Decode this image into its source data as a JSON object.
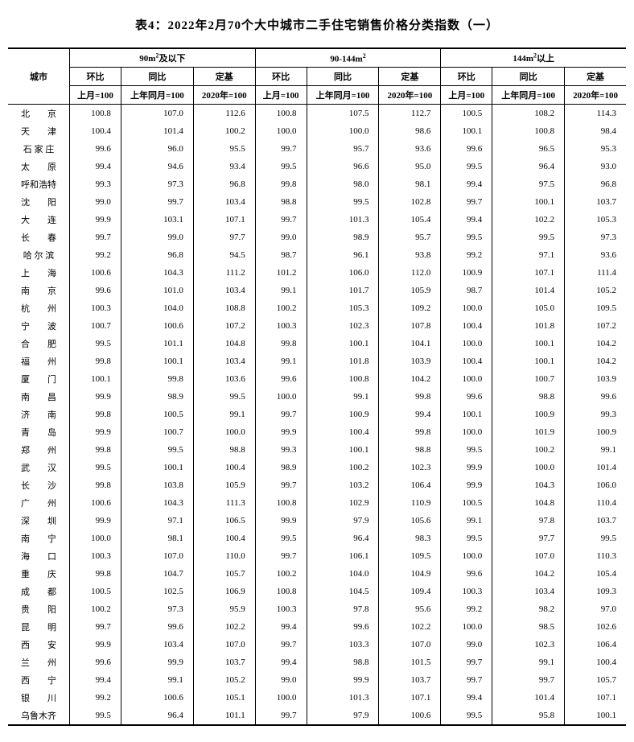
{
  "title": "表4：2022年2月70个大中城市二手住宅销售价格分类指数（一）",
  "headers": {
    "city": "城市",
    "group1": "90m²及以下",
    "group2": "90-144m²",
    "group3": "144m²以上",
    "mom": "环比",
    "yoy": "同比",
    "base": "定基",
    "sub_mom": "上月=100",
    "sub_yoy": "上年同月=100",
    "sub_base": "2020年=100"
  },
  "rows": [
    {
      "city": "北　　京",
      "v": [
        "100.8",
        "107.0",
        "112.6",
        "100.8",
        "107.5",
        "112.7",
        "100.5",
        "108.2",
        "114.3"
      ]
    },
    {
      "city": "天　　津",
      "v": [
        "100.4",
        "101.4",
        "100.2",
        "100.0",
        "100.0",
        "98.6",
        "100.1",
        "100.8",
        "98.4"
      ]
    },
    {
      "city": "石 家 庄",
      "v": [
        "99.6",
        "96.0",
        "95.5",
        "99.7",
        "95.7",
        "93.6",
        "99.6",
        "96.5",
        "95.3"
      ]
    },
    {
      "city": "太　　原",
      "v": [
        "99.4",
        "94.6",
        "93.4",
        "99.5",
        "96.6",
        "95.0",
        "99.5",
        "96.4",
        "93.0"
      ]
    },
    {
      "city": "呼和浩特",
      "v": [
        "99.3",
        "97.3",
        "96.8",
        "99.8",
        "98.0",
        "98.1",
        "99.4",
        "97.5",
        "96.8"
      ]
    },
    {
      "city": "沈　　阳",
      "v": [
        "99.0",
        "99.7",
        "103.4",
        "98.8",
        "99.5",
        "102.8",
        "99.7",
        "100.1",
        "103.7"
      ]
    },
    {
      "city": "大　　连",
      "v": [
        "99.9",
        "103.1",
        "107.1",
        "99.7",
        "101.3",
        "105.4",
        "99.4",
        "102.2",
        "105.3"
      ]
    },
    {
      "city": "长　　春",
      "v": [
        "99.7",
        "99.0",
        "97.7",
        "99.0",
        "98.9",
        "95.7",
        "99.5",
        "99.5",
        "97.3"
      ]
    },
    {
      "city": "哈 尔 滨",
      "v": [
        "99.2",
        "96.8",
        "94.5",
        "98.7",
        "96.1",
        "93.8",
        "99.2",
        "97.1",
        "93.6"
      ]
    },
    {
      "city": "上　　海",
      "v": [
        "100.6",
        "104.3",
        "111.2",
        "101.2",
        "106.0",
        "112.0",
        "100.9",
        "107.1",
        "111.4"
      ]
    },
    {
      "city": "南　　京",
      "v": [
        "99.6",
        "101.0",
        "103.4",
        "99.1",
        "101.7",
        "105.9",
        "98.7",
        "101.4",
        "105.2"
      ]
    },
    {
      "city": "杭　　州",
      "v": [
        "100.3",
        "104.0",
        "108.8",
        "100.2",
        "105.3",
        "109.2",
        "100.0",
        "105.0",
        "109.5"
      ]
    },
    {
      "city": "宁　　波",
      "v": [
        "100.7",
        "100.6",
        "107.2",
        "100.3",
        "102.3",
        "107.8",
        "100.4",
        "101.8",
        "107.2"
      ]
    },
    {
      "city": "合　　肥",
      "v": [
        "99.5",
        "101.1",
        "104.8",
        "99.8",
        "100.1",
        "104.1",
        "100.0",
        "100.1",
        "104.2"
      ]
    },
    {
      "city": "福　　州",
      "v": [
        "99.8",
        "100.1",
        "103.4",
        "99.1",
        "101.8",
        "103.9",
        "100.4",
        "100.1",
        "104.2"
      ]
    },
    {
      "city": "厦　　门",
      "v": [
        "100.1",
        "99.8",
        "103.6",
        "99.6",
        "100.8",
        "104.2",
        "100.0",
        "100.7",
        "103.9"
      ]
    },
    {
      "city": "南　　昌",
      "v": [
        "99.9",
        "98.9",
        "99.5",
        "100.0",
        "99.1",
        "99.8",
        "99.6",
        "98.8",
        "99.6"
      ]
    },
    {
      "city": "济　　南",
      "v": [
        "99.8",
        "100.5",
        "99.1",
        "99.7",
        "100.9",
        "99.4",
        "100.1",
        "100.9",
        "99.3"
      ]
    },
    {
      "city": "青　　岛",
      "v": [
        "99.9",
        "100.7",
        "100.0",
        "99.9",
        "100.4",
        "99.8",
        "100.0",
        "101.9",
        "100.9"
      ]
    },
    {
      "city": "郑　　州",
      "v": [
        "99.8",
        "99.5",
        "98.8",
        "99.3",
        "100.1",
        "98.8",
        "99.5",
        "100.2",
        "99.1"
      ]
    },
    {
      "city": "武　　汉",
      "v": [
        "99.5",
        "100.1",
        "100.4",
        "98.9",
        "100.2",
        "102.3",
        "99.9",
        "100.0",
        "101.4"
      ]
    },
    {
      "city": "长　　沙",
      "v": [
        "99.8",
        "103.8",
        "105.9",
        "99.7",
        "103.2",
        "106.4",
        "99.9",
        "104.3",
        "106.0"
      ]
    },
    {
      "city": "广　　州",
      "v": [
        "100.6",
        "104.3",
        "111.3",
        "100.8",
        "102.9",
        "110.9",
        "100.5",
        "104.8",
        "110.4"
      ]
    },
    {
      "city": "深　　圳",
      "v": [
        "99.9",
        "97.1",
        "106.5",
        "99.9",
        "97.9",
        "105.6",
        "99.1",
        "97.8",
        "103.7"
      ]
    },
    {
      "city": "南　　宁",
      "v": [
        "100.0",
        "98.1",
        "100.4",
        "99.5",
        "96.4",
        "98.3",
        "99.5",
        "97.7",
        "99.5"
      ]
    },
    {
      "city": "海　　口",
      "v": [
        "100.3",
        "107.0",
        "110.0",
        "99.7",
        "106.1",
        "109.5",
        "100.0",
        "107.0",
        "110.3"
      ]
    },
    {
      "city": "重　　庆",
      "v": [
        "99.8",
        "104.7",
        "105.7",
        "100.2",
        "104.0",
        "104.9",
        "99.6",
        "104.2",
        "105.4"
      ]
    },
    {
      "city": "成　　都",
      "v": [
        "100.5",
        "102.5",
        "106.9",
        "100.8",
        "104.5",
        "109.4",
        "100.3",
        "103.4",
        "109.3"
      ]
    },
    {
      "city": "贵　　阳",
      "v": [
        "100.2",
        "97.3",
        "95.9",
        "100.3",
        "97.8",
        "95.6",
        "99.2",
        "98.2",
        "97.0"
      ]
    },
    {
      "city": "昆　　明",
      "v": [
        "99.7",
        "99.6",
        "102.2",
        "99.4",
        "99.6",
        "102.2",
        "100.0",
        "98.5",
        "102.6"
      ]
    },
    {
      "city": "西　　安",
      "v": [
        "99.9",
        "103.4",
        "107.0",
        "99.7",
        "103.3",
        "107.0",
        "99.0",
        "102.3",
        "106.4"
      ]
    },
    {
      "city": "兰　　州",
      "v": [
        "99.6",
        "99.9",
        "103.7",
        "99.4",
        "98.8",
        "101.5",
        "99.7",
        "99.1",
        "100.4"
      ]
    },
    {
      "city": "西　　宁",
      "v": [
        "99.4",
        "99.1",
        "105.2",
        "99.0",
        "99.9",
        "103.7",
        "99.7",
        "99.7",
        "105.7"
      ]
    },
    {
      "city": "银　　川",
      "v": [
        "99.2",
        "100.6",
        "105.1",
        "100.0",
        "101.3",
        "107.1",
        "99.4",
        "101.4",
        "107.1"
      ]
    },
    {
      "city": "乌鲁木齐",
      "v": [
        "99.5",
        "96.4",
        "101.1",
        "99.7",
        "97.9",
        "100.6",
        "99.5",
        "95.8",
        "100.1"
      ]
    }
  ]
}
